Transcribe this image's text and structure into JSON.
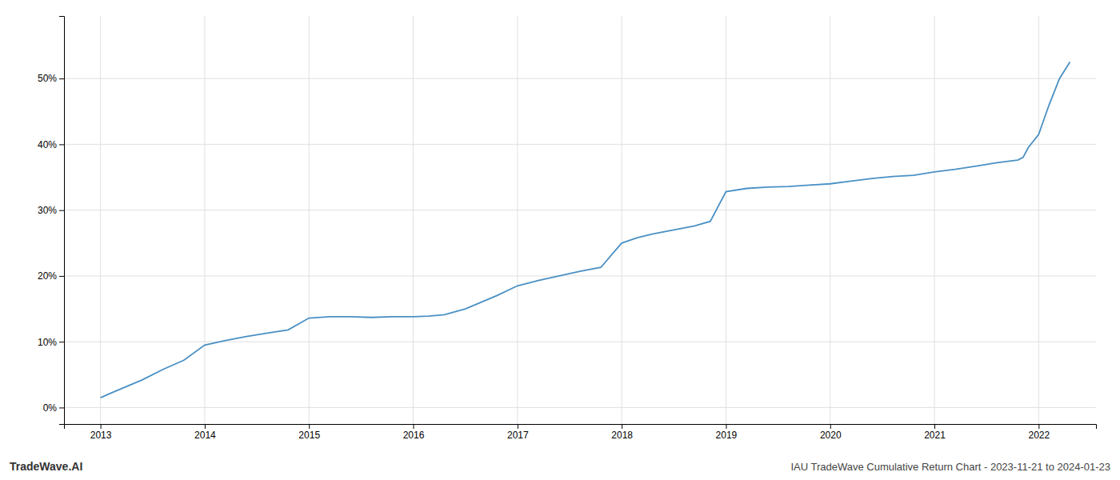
{
  "chart_data": {
    "type": "line",
    "title": "IAU TradeWave Cumulative Return Chart - 2023-11-21 to 2024-01-23",
    "annotations": [
      "TradeWave.AI"
    ],
    "x": [
      2013.0,
      2013.1,
      2013.25,
      2013.4,
      2013.6,
      2013.8,
      2014.0,
      2014.2,
      2014.4,
      2014.6,
      2014.8,
      2015.0,
      2015.2,
      2015.4,
      2015.6,
      2015.8,
      2016.0,
      2016.15,
      2016.3,
      2016.5,
      2016.65,
      2016.8,
      2017.0,
      2017.2,
      2017.4,
      2017.6,
      2017.8,
      2018.0,
      2018.15,
      2018.3,
      2018.5,
      2018.7,
      2018.85,
      2019.0,
      2019.2,
      2019.4,
      2019.6,
      2019.8,
      2020.0,
      2020.2,
      2020.4,
      2020.6,
      2020.8,
      2021.0,
      2021.2,
      2021.4,
      2021.6,
      2021.8,
      2021.85,
      2021.9,
      2022.0,
      2022.1,
      2022.2,
      2022.3
    ],
    "values": [
      0.015,
      0.022,
      0.032,
      0.042,
      0.058,
      0.072,
      0.095,
      0.102,
      0.108,
      0.113,
      0.118,
      0.136,
      0.138,
      0.138,
      0.137,
      0.138,
      0.138,
      0.139,
      0.141,
      0.15,
      0.16,
      0.17,
      0.185,
      0.193,
      0.2,
      0.207,
      0.213,
      0.25,
      0.258,
      0.264,
      0.27,
      0.276,
      0.283,
      0.328,
      0.333,
      0.335,
      0.336,
      0.338,
      0.34,
      0.344,
      0.348,
      0.351,
      0.353,
      0.358,
      0.362,
      0.367,
      0.372,
      0.376,
      0.38,
      0.395,
      0.415,
      0.46,
      0.5,
      0.525
    ],
    "color": "#4a90c4",
    "xlim": [
      2012.65,
      2022.55
    ],
    "xticks": [
      2013,
      2014,
      2015,
      2016,
      2017,
      2018,
      2019,
      2020,
      2021,
      2022
    ],
    "ylim": [
      -0.025,
      0.595
    ],
    "yticks": [
      {
        "value": 0.0,
        "label": "0%"
      },
      {
        "value": 0.1,
        "label": "10%"
      },
      {
        "value": 0.2,
        "label": "20%"
      },
      {
        "value": 0.3,
        "label": "30%"
      },
      {
        "value": 0.4,
        "label": "40%"
      },
      {
        "value": 0.5,
        "label": "50%"
      }
    ],
    "grid": true
  }
}
